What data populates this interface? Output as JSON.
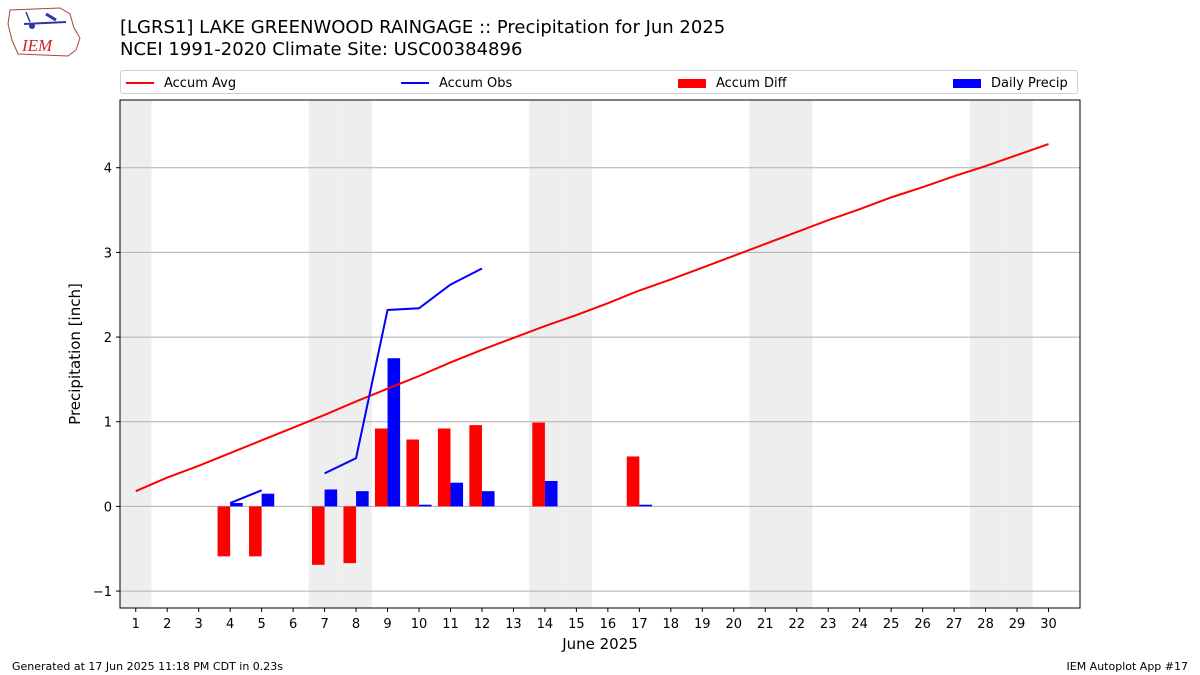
{
  "logo": {
    "text": "IEM",
    "icon": "iem-weather-station-logo"
  },
  "title": {
    "line1": "[LGRS1] LAKE GREENWOOD RAINGAGE :: Precipitation for Jun 2025",
    "line2": "NCEI 1991-2020 Climate Site: USC00384896"
  },
  "legend": [
    {
      "label": "Accum Avg",
      "kind": "line",
      "color": "#ff0000"
    },
    {
      "label": "Accum Obs",
      "kind": "line",
      "color": "#0000ff"
    },
    {
      "label": "Accum Diff",
      "kind": "bar",
      "color": "#ff0000"
    },
    {
      "label": "Daily Precip",
      "kind": "bar",
      "color": "#0000ff"
    }
  ],
  "footer": {
    "left": "Generated at 17 Jun 2025 11:18 PM CDT in 0.23s",
    "right": "IEM Autoplot App #17"
  },
  "chart_data": {
    "type": "bar",
    "xlabel": "June 2025",
    "ylabel": "Precipitation [inch]",
    "xlim": [
      0.5,
      31
    ],
    "ylim": [
      -1.2,
      4.8
    ],
    "x_ticks": [
      1,
      2,
      3,
      4,
      5,
      6,
      7,
      8,
      9,
      10,
      11,
      12,
      13,
      14,
      15,
      16,
      17,
      18,
      19,
      20,
      21,
      22,
      23,
      24,
      25,
      26,
      27,
      28,
      29,
      30
    ],
    "y_ticks": [
      -1,
      0,
      1,
      2,
      3,
      4
    ],
    "grid": "horizontal",
    "weekend_shading": [
      1,
      7,
      8,
      14,
      15,
      21,
      22,
      28,
      29
    ],
    "shade_color": "#eeeeee",
    "series": [
      {
        "name": "Accum Avg",
        "type": "line",
        "color": "#ff0000",
        "x": [
          1,
          2,
          3,
          4,
          5,
          6,
          7,
          8,
          9,
          10,
          11,
          12,
          13,
          14,
          15,
          16,
          17,
          18,
          19,
          20,
          21,
          22,
          23,
          24,
          25,
          26,
          27,
          28,
          29,
          30
        ],
        "y": [
          0.18,
          0.34,
          0.48,
          0.63,
          0.78,
          0.93,
          1.08,
          1.24,
          1.39,
          1.54,
          1.7,
          1.85,
          1.99,
          2.13,
          2.26,
          2.4,
          2.55,
          2.68,
          2.82,
          2.96,
          3.1,
          3.24,
          3.38,
          3.51,
          3.65,
          3.77,
          3.9,
          4.02,
          4.15,
          4.28
        ]
      },
      {
        "name": "Accum Obs",
        "type": "line",
        "color": "#0000ff",
        "segments": [
          {
            "x": [
              4,
              5
            ],
            "y": [
              0.04,
              0.19
            ]
          },
          {
            "x": [
              7,
              8,
              9,
              10,
              11,
              12
            ],
            "y": [
              0.39,
              0.57,
              2.32,
              2.34,
              2.62,
              2.81
            ]
          }
        ]
      },
      {
        "name": "Accum Diff",
        "type": "bar",
        "color": "#ff0000",
        "offset": "left",
        "x": [
          4,
          5,
          7,
          8,
          9,
          10,
          11,
          12,
          14,
          17
        ],
        "y": [
          -0.59,
          -0.59,
          -0.69,
          -0.67,
          0.92,
          0.79,
          0.92,
          0.96,
          0.99,
          0.59
        ]
      },
      {
        "name": "Daily Precip",
        "type": "bar",
        "color": "#0000ff",
        "offset": "right",
        "x": [
          4,
          5,
          7,
          8,
          9,
          10,
          11,
          12,
          14,
          17
        ],
        "y": [
          0.04,
          0.15,
          0.2,
          0.18,
          1.75,
          0.02,
          0.28,
          0.18,
          0.3,
          0.02
        ]
      }
    ]
  }
}
